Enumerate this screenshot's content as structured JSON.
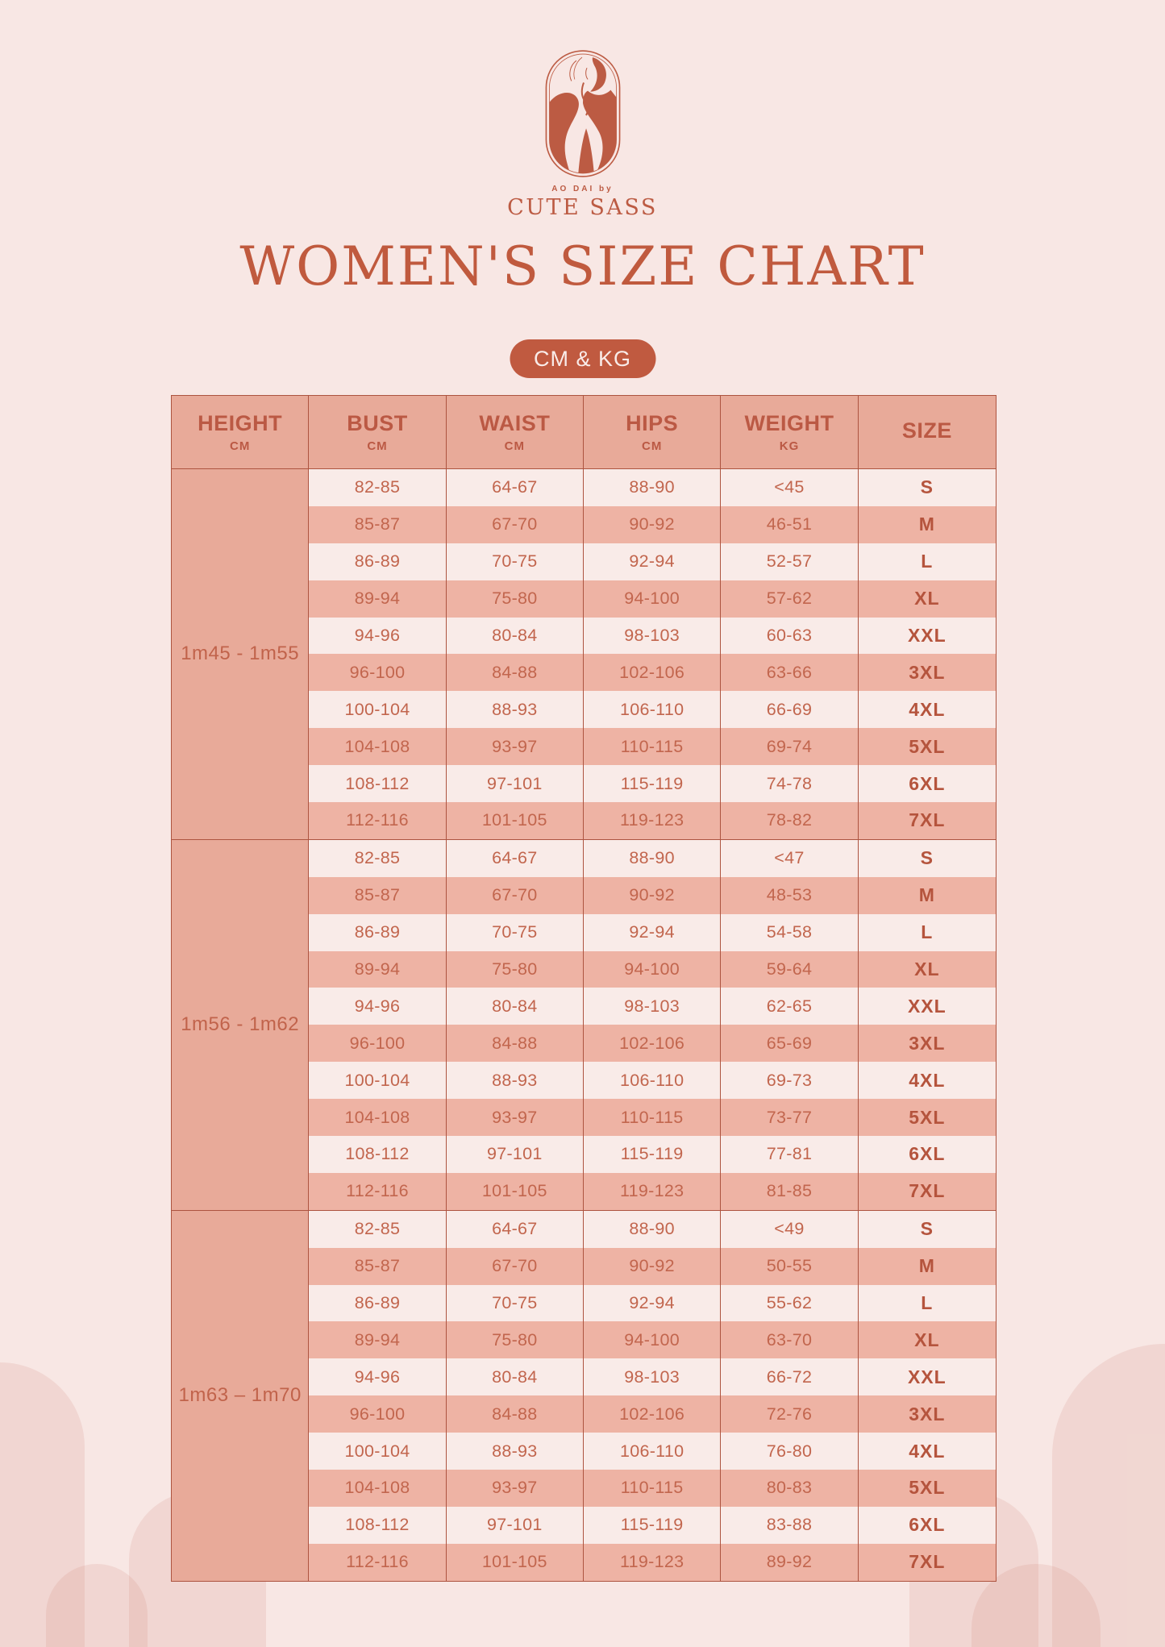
{
  "brand": {
    "tagline": "AO DAI by",
    "name": "CUTE SASS"
  },
  "title": "WOMEN'S SIZE CHART",
  "badge": "CM & KG",
  "colors": {
    "background": "#f8e7e4",
    "rust_accent": "#c05a40",
    "table_border": "#ad5440",
    "header_bg": "#e8aa99",
    "row_light": "#f9ebe8",
    "row_dark": "#eeb3a4",
    "text_rust": "#c2664e"
  },
  "table": {
    "headers": [
      {
        "label": "HEIGHT",
        "unit": "CM"
      },
      {
        "label": "BUST",
        "unit": "CM"
      },
      {
        "label": "WAIST",
        "unit": "CM"
      },
      {
        "label": "HIPS",
        "unit": "CM"
      },
      {
        "label": "WEIGHT",
        "unit": "KG"
      },
      {
        "label": "SIZE",
        "unit": ""
      }
    ],
    "groups": [
      {
        "height": "1m45 - 1m55",
        "rows": [
          [
            "82-85",
            "64-67",
            "88-90",
            "<45",
            "S"
          ],
          [
            "85-87",
            "67-70",
            "90-92",
            "46-51",
            "M"
          ],
          [
            "86-89",
            "70-75",
            "92-94",
            "52-57",
            "L"
          ],
          [
            "89-94",
            "75-80",
            "94-100",
            "57-62",
            "XL"
          ],
          [
            "94-96",
            "80-84",
            "98-103",
            "60-63",
            "XXL"
          ],
          [
            "96-100",
            "84-88",
            "102-106",
            "63-66",
            "3XL"
          ],
          [
            "100-104",
            "88-93",
            "106-110",
            "66-69",
            "4XL"
          ],
          [
            "104-108",
            "93-97",
            "110-115",
            "69-74",
            "5XL"
          ],
          [
            "108-112",
            "97-101",
            "115-119",
            "74-78",
            "6XL"
          ],
          [
            "112-116",
            "101-105",
            "119-123",
            "78-82",
            "7XL"
          ]
        ]
      },
      {
        "height": "1m56 - 1m62",
        "rows": [
          [
            "82-85",
            "64-67",
            "88-90",
            "<47",
            "S"
          ],
          [
            "85-87",
            "67-70",
            "90-92",
            "48-53",
            "M"
          ],
          [
            "86-89",
            "70-75",
            "92-94",
            "54-58",
            "L"
          ],
          [
            "89-94",
            "75-80",
            "94-100",
            "59-64",
            "XL"
          ],
          [
            "94-96",
            "80-84",
            "98-103",
            "62-65",
            "XXL"
          ],
          [
            "96-100",
            "84-88",
            "102-106",
            "65-69",
            "3XL"
          ],
          [
            "100-104",
            "88-93",
            "106-110",
            "69-73",
            "4XL"
          ],
          [
            "104-108",
            "93-97",
            "110-115",
            "73-77",
            "5XL"
          ],
          [
            "108-112",
            "97-101",
            "115-119",
            "77-81",
            "6XL"
          ],
          [
            "112-116",
            "101-105",
            "119-123",
            "81-85",
            "7XL"
          ]
        ]
      },
      {
        "height": "1m63 – 1m70",
        "rows": [
          [
            "82-85",
            "64-67",
            "88-90",
            "<49",
            "S"
          ],
          [
            "85-87",
            "67-70",
            "90-92",
            "50-55",
            "M"
          ],
          [
            "86-89",
            "70-75",
            "92-94",
            "55-62",
            "L"
          ],
          [
            "89-94",
            "75-80",
            "94-100",
            "63-70",
            "XL"
          ],
          [
            "94-96",
            "80-84",
            "98-103",
            "66-72",
            "XXL"
          ],
          [
            "96-100",
            "84-88",
            "102-106",
            "72-76",
            "3XL"
          ],
          [
            "100-104",
            "88-93",
            "106-110",
            "76-80",
            "4XL"
          ],
          [
            "104-108",
            "93-97",
            "110-115",
            "80-83",
            "5XL"
          ],
          [
            "108-112",
            "97-101",
            "115-119",
            "83-88",
            "6XL"
          ],
          [
            "112-116",
            "101-105",
            "119-123",
            "89-92",
            "7XL"
          ]
        ]
      }
    ]
  }
}
